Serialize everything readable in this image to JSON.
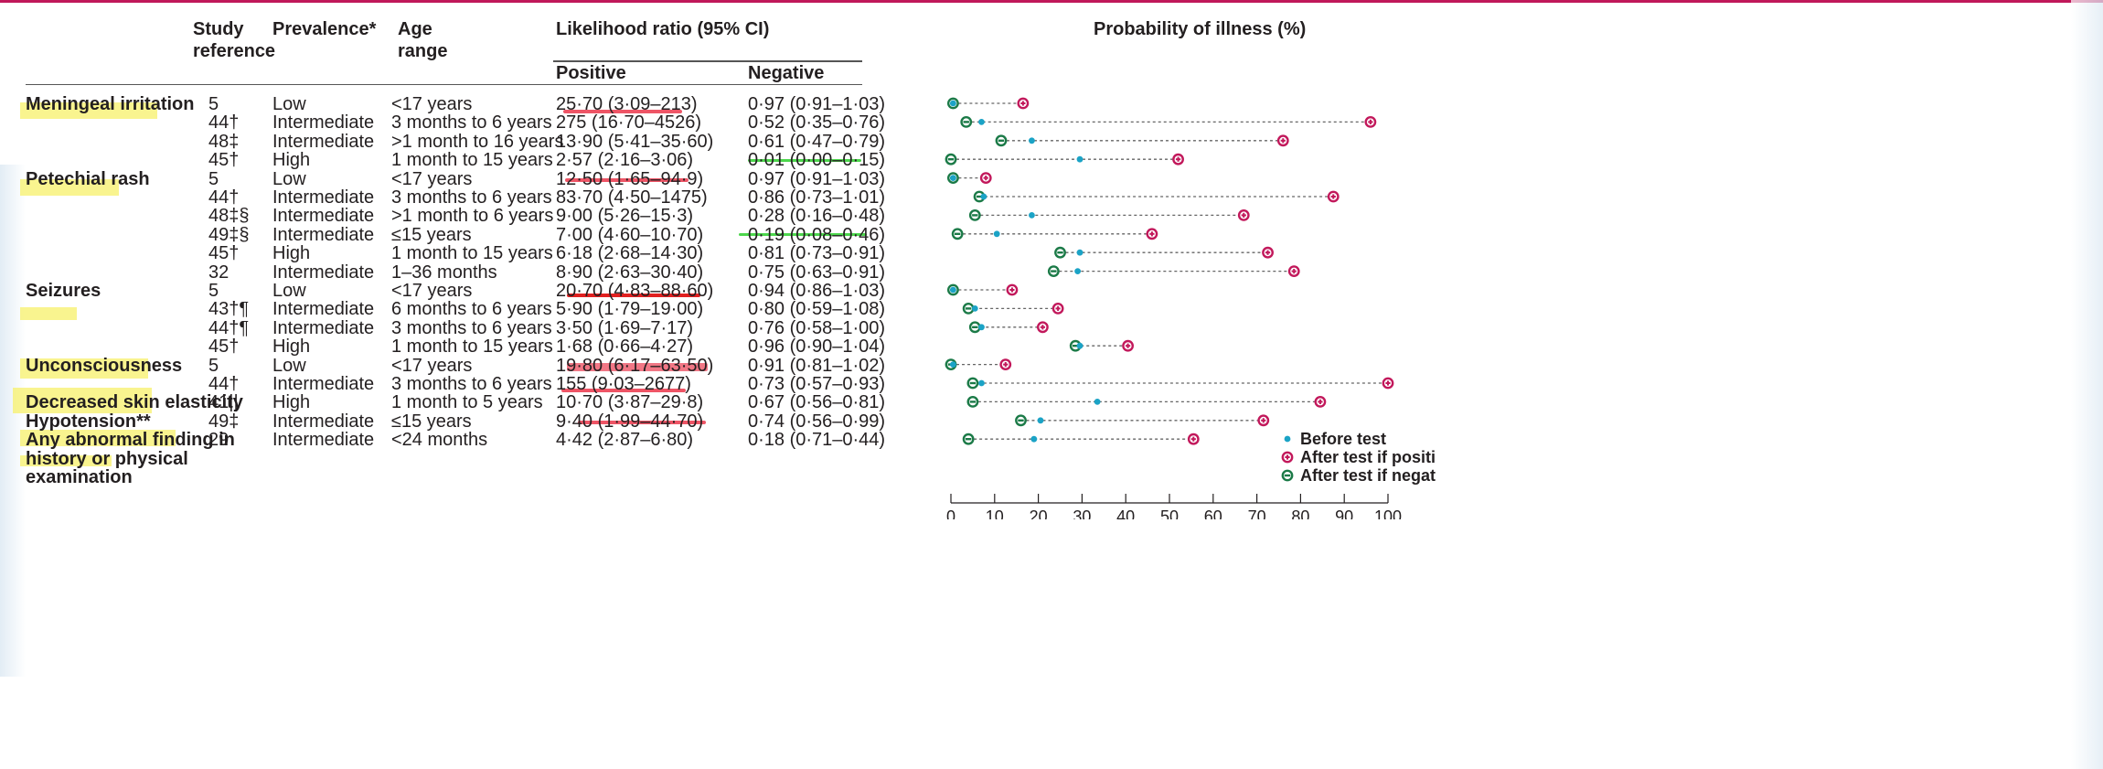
{
  "headers": {
    "study_reference": "Study reference",
    "prevalence": "Prevalence*",
    "age_range": "Age range",
    "likelihood_ratio": "Likelihood ratio (95% CI)",
    "positive": "Positive",
    "negative": "Negative",
    "probability": "Probability of illness (%)"
  },
  "rows": [
    {
      "condition": "Meningeal irritation",
      "ref": "5",
      "prev": "Low",
      "age": "<17 years",
      "pos": "25·70 (3·09–213)",
      "neg": "0·97 (0·91–1·03)"
    },
    {
      "condition": "",
      "ref": "44†",
      "prev": "Intermediate",
      "age": "3 months to 6 years",
      "pos": "275 (16·70–4526)",
      "neg": "0·52 (0·35–0·76)"
    },
    {
      "condition": "",
      "ref": "48‡",
      "prev": "Intermediate",
      "age": ">1 month to 16 years",
      "pos": "13·90 (5·41–35·60)",
      "neg": "0·61 (0·47–0·79)"
    },
    {
      "condition": "",
      "ref": "45†",
      "prev": "High",
      "age": "1 month to 15 years",
      "pos": "2·57 (2·16–3·06)",
      "neg": "0·01 (0·00–0·15)"
    },
    {
      "condition": "Petechial rash",
      "ref": "5",
      "prev": "Low",
      "age": "<17 years",
      "pos": "12·50 (1·65–94·9)",
      "neg": "0·97 (0·91–1·03)"
    },
    {
      "condition": "",
      "ref": "44†",
      "prev": "Intermediate",
      "age": "3 months to 6 years",
      "pos": "83·70 (4·50–1475)",
      "neg": "0·86 (0·73–1·01)"
    },
    {
      "condition": "",
      "ref": "48‡§",
      "prev": "Intermediate",
      "age": ">1 month to 6 years",
      "pos": "9·00 (5·26–15·3)",
      "neg": "0·28 (0·16–0·48)"
    },
    {
      "condition": "",
      "ref": "49‡§",
      "prev": "Intermediate",
      "age": "≤15 years",
      "pos": "7·00 (4·60–10·70)",
      "neg": "0·19 (0·08–0·46)"
    },
    {
      "condition": "",
      "ref": "45†",
      "prev": "High",
      "age": "1 month to 15 years",
      "pos": "6·18 (2·68–14·30)",
      "neg": "0·81 (0·73–0·91)"
    },
    {
      "condition": "",
      "ref": "32",
      "prev": "Intermediate",
      "age": "1–36 months",
      "pos": "8·90 (2·63–30·40)",
      "neg": "0·75 (0·63–0·91)"
    },
    {
      "condition": "Seizures",
      "ref": "5",
      "prev": "Low",
      "age": "<17 years",
      "pos": "20·70 (4·83–88·60)",
      "neg": "0·94 (0·86–1·03)"
    },
    {
      "condition": "",
      "ref": "43†¶",
      "prev": "Intermediate",
      "age": "6 months to 6 years",
      "pos": "5·90 (1·79–19·00)",
      "neg": "0·80 (0·59–1·08)"
    },
    {
      "condition": "",
      "ref": "44†¶",
      "prev": "Intermediate",
      "age": "3 months to 6 years",
      "pos": "3·50 (1·69–7·17)",
      "neg": "0·76 (0·58–1·00)"
    },
    {
      "condition": "",
      "ref": "45†",
      "prev": "High",
      "age": "1 month to 15 years",
      "pos": "1·68 (0·66–4·27)",
      "neg": "0·96 (0·90–1·04)"
    },
    {
      "condition": "Unconsciousness",
      "ref": "5",
      "prev": "Low",
      "age": "<17 years",
      "pos": "19·80 (6·17–63·50)",
      "neg": "0·91 (0·81–1·02)"
    },
    {
      "condition": "",
      "ref": "44†",
      "prev": "Intermediate",
      "age": "3 months to 6 years",
      "pos": "155 (9·03–2677)",
      "neg": "0·73 (0·57–0·93)"
    },
    {
      "condition": "Decreased skin elasticity",
      "ref": "41||",
      "prev": "High",
      "age": "1 month to 5 years",
      "pos": "10·70 (3·87–29·8)",
      "neg": "0·67 (0·56–0·81)"
    },
    {
      "condition": "Hypotension**",
      "ref": "49‡",
      "prev": "Intermediate",
      "age": "≤15 years",
      "pos": "9·40 (1·99–44·70)",
      "neg": "0·74 (0·56–0·99)"
    },
    {
      "condition": "Any abnormal finding in",
      "ref": "29",
      "prev": "Intermediate",
      "age": "<24 months",
      "pos": "4·42 (2·87–6·80)",
      "neg": "0·18 (0·71–0·44)"
    }
  ],
  "condition_continuation": [
    "history or physical",
    "examination"
  ],
  "legend": {
    "before": "Before test",
    "positive": "After test if positive",
    "negative": "After test if negative"
  },
  "colors": {
    "before": "#1ba3c6",
    "positive": "#c2185b",
    "negative": "#1b7a47",
    "rule": "#c0185a",
    "highlight": "#f7f06a",
    "red_underline": "#ee5566"
  },
  "chart_data": {
    "type": "dot-range",
    "title": "Probability of illness (%)",
    "x_ticks": [
      0,
      10,
      20,
      30,
      40,
      50,
      60,
      70,
      80,
      90,
      100
    ],
    "xlim": [
      0,
      100
    ],
    "series_names": [
      "Before test",
      "After test if positive",
      "After test if negative"
    ],
    "points": [
      {
        "before": 0.5,
        "positive": 16.5,
        "negative": 0.5
      },
      {
        "before": 7,
        "positive": 96,
        "negative": 3.5
      },
      {
        "before": 18.5,
        "positive": 76,
        "negative": 11.5
      },
      {
        "before": 29.5,
        "positive": 52,
        "negative": 0
      },
      {
        "before": 0.5,
        "positive": 8,
        "negative": 0.5
      },
      {
        "before": 7.5,
        "positive": 87.5,
        "negative": 6.5
      },
      {
        "before": 18.5,
        "positive": 67,
        "negative": 5.5
      },
      {
        "before": 10.5,
        "positive": 46,
        "negative": 1.5
      },
      {
        "before": 29.5,
        "positive": 72.5,
        "negative": 25
      },
      {
        "before": 29,
        "positive": 78.5,
        "negative": 23.5
      },
      {
        "before": 0.5,
        "positive": 14,
        "negative": 0.5
      },
      {
        "before": 5.5,
        "positive": 24.5,
        "negative": 4
      },
      {
        "before": 7,
        "positive": 21,
        "negative": 5.5
      },
      {
        "before": 29.5,
        "positive": 40.5,
        "negative": 28.5
      },
      {
        "before": 0.5,
        "positive": 12.5,
        "negative": 0
      },
      {
        "before": 7,
        "positive": 100,
        "negative": 5
      },
      {
        "before": 33.5,
        "positive": 84.5,
        "negative": 5
      },
      {
        "before": 20.5,
        "positive": 71.5,
        "negative": 16
      },
      {
        "before": 19,
        "positive": 55.5,
        "negative": 4
      }
    ]
  }
}
